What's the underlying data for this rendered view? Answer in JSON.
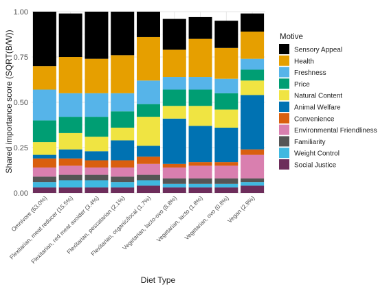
{
  "chart_data": {
    "type": "bar",
    "stacked": true,
    "title": "",
    "xlabel": "Diet Type",
    "ylabel": "Shared importance score (SQRT(B/W))",
    "ylim": [
      0,
      1
    ],
    "yticks": [
      "0.00",
      "0.25",
      "0.50",
      "0.75",
      "1.00"
    ],
    "grid": true,
    "legend_title": "Motive",
    "legend_position": "right",
    "categories": [
      "Omnivore (63.0%)",
      "Flexitarian, meat reducer (15.5%)",
      "Flexitarian, red meat avoider (3.4%)",
      "Flexitarian, pescatarian (2.1%)",
      "Flexitarian, organic/local (1.7%)",
      "Vegetarian, lacto-ovo (8.8%)",
      "Vegetarian, lacto (1.8%)",
      "Vegetarian, ovo (0.8%)",
      "Vegan (2.9%)"
    ],
    "series": [
      {
        "name": "Social Justice",
        "color": "#6d2d5b",
        "values": [
          0.03,
          0.03,
          0.03,
          0.03,
          0.04,
          0.03,
          0.03,
          0.03,
          0.04
        ]
      },
      {
        "name": "Weight Control",
        "color": "#3fb8e0",
        "values": [
          0.03,
          0.04,
          0.04,
          0.03,
          0.03,
          0.02,
          0.02,
          0.02,
          0.02
        ]
      },
      {
        "name": "Familiarity",
        "color": "#555555",
        "values": [
          0.03,
          0.03,
          0.03,
          0.03,
          0.03,
          0.03,
          0.03,
          0.03,
          0.02
        ]
      },
      {
        "name": "Environmental Friendliness",
        "color": "#d97faf",
        "values": [
          0.05,
          0.05,
          0.04,
          0.05,
          0.06,
          0.06,
          0.07,
          0.07,
          0.13
        ]
      },
      {
        "name": "Convenience",
        "color": "#d95f0e",
        "values": [
          0.05,
          0.04,
          0.04,
          0.04,
          0.04,
          0.02,
          0.02,
          0.02,
          0.03
        ]
      },
      {
        "name": "Animal Welfare",
        "color": "#0072b2",
        "values": [
          0.02,
          0.05,
          0.05,
          0.11,
          0.06,
          0.25,
          0.2,
          0.19,
          0.3
        ]
      },
      {
        "name": "Natural Content",
        "color": "#f0e442",
        "values": [
          0.07,
          0.09,
          0.08,
          0.07,
          0.16,
          0.07,
          0.11,
          0.1,
          0.08
        ]
      },
      {
        "name": "Price",
        "color": "#009e73",
        "values": [
          0.12,
          0.09,
          0.11,
          0.09,
          0.07,
          0.09,
          0.09,
          0.09,
          0.06
        ]
      },
      {
        "name": "Freshness",
        "color": "#56b4e9",
        "values": [
          0.17,
          0.13,
          0.13,
          0.1,
          0.13,
          0.07,
          0.07,
          0.08,
          0.06
        ]
      },
      {
        "name": "Health",
        "color": "#e69f00",
        "values": [
          0.13,
          0.2,
          0.19,
          0.21,
          0.24,
          0.15,
          0.21,
          0.17,
          0.15
        ]
      },
      {
        "name": "Sensory Appeal",
        "color": "#000000",
        "values": [
          0.3,
          0.24,
          0.26,
          0.24,
          0.14,
          0.17,
          0.12,
          0.15,
          0.1
        ]
      }
    ],
    "legend_order": [
      "Sensory Appeal",
      "Health",
      "Freshness",
      "Price",
      "Natural Content",
      "Animal Welfare",
      "Convenience",
      "Environmental Friendliness",
      "Familiarity",
      "Weight Control",
      "Social Justice"
    ]
  }
}
